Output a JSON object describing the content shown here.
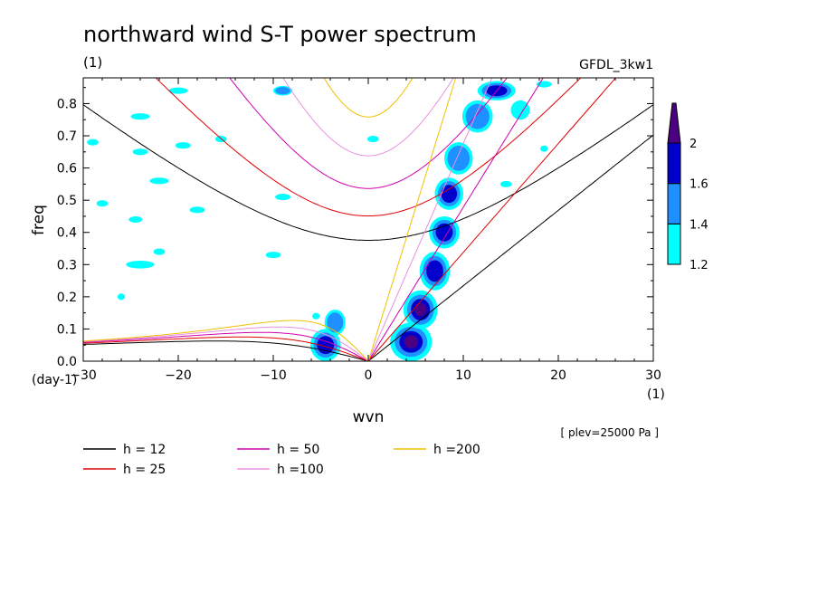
{
  "chart_data": {
    "type": "heatmap",
    "title": "northward wind S-T power spectrum",
    "title_units": "(1)",
    "model_label": "GFDL_3kw1",
    "xlabel": "wvn",
    "ylabel": "freq",
    "x_units": "(1)",
    "y_units": "(day-1)",
    "level_note": "[ plev=25000 Pa ]",
    "xlim": [
      -30,
      30
    ],
    "ylim": [
      0,
      0.88
    ],
    "x_ticks": [
      -30,
      -20,
      -10,
      0,
      10,
      20,
      30
    ],
    "y_ticks": [
      0.0,
      0.1,
      0.2,
      0.3,
      0.4,
      0.5,
      0.6,
      0.7,
      0.8
    ],
    "y_tick_labels": [
      "0.0",
      "0.1",
      "0.2",
      "0.3",
      "0.4",
      "0.5",
      "0.6",
      "0.7",
      "0.8"
    ],
    "colorbar": {
      "levels": [
        1.2,
        1.4,
        1.6,
        2
      ],
      "labels": [
        "1.2",
        "1.4",
        "1.6",
        "2"
      ],
      "colors": [
        "#00ffff",
        "#1e90ff",
        "#0000cd",
        "#4b0082"
      ]
    },
    "dispersion_curves": [
      {
        "label": "h = 12",
        "h": 12,
        "color": "#000000"
      },
      {
        "label": "h = 25",
        "h": 25,
        "color": "#e00000"
      },
      {
        "label": "h = 50",
        "h": 50,
        "color": "#d000b0"
      },
      {
        "label": "h =100",
        "h": 100,
        "color": "#e890e0"
      },
      {
        "label": "h =200",
        "h": 200,
        "color": "#f0c000"
      }
    ],
    "power_blobs": [
      {
        "x": -4.5,
        "y": 0.05,
        "rx": 1.6,
        "ry": 0.05,
        "level": 1.6
      },
      {
        "x": -3.5,
        "y": 0.12,
        "rx": 1.1,
        "ry": 0.04,
        "level": 1.4
      },
      {
        "x": 4.5,
        "y": 0.06,
        "rx": 2.2,
        "ry": 0.06,
        "level": 2
      },
      {
        "x": 5.5,
        "y": 0.16,
        "rx": 1.8,
        "ry": 0.06,
        "level": 2
      },
      {
        "x": 7.0,
        "y": 0.28,
        "rx": 1.6,
        "ry": 0.06,
        "level": 1.6
      },
      {
        "x": 8.0,
        "y": 0.4,
        "rx": 1.6,
        "ry": 0.05,
        "level": 1.6
      },
      {
        "x": 8.5,
        "y": 0.52,
        "rx": 1.5,
        "ry": 0.05,
        "level": 1.6
      },
      {
        "x": 9.5,
        "y": 0.63,
        "rx": 1.5,
        "ry": 0.05,
        "level": 1.4
      },
      {
        "x": 11.5,
        "y": 0.76,
        "rx": 1.6,
        "ry": 0.05,
        "level": 1.4
      },
      {
        "x": 13.5,
        "y": 0.84,
        "rx": 2.0,
        "ry": 0.03,
        "level": 1.6
      },
      {
        "x": 16.0,
        "y": 0.78,
        "rx": 1.0,
        "ry": 0.03,
        "level": 1.2
      },
      {
        "x": -9.0,
        "y": 0.84,
        "rx": 1.0,
        "ry": 0.015,
        "level": 1.4
      },
      {
        "x": -24.0,
        "y": 0.76,
        "rx": 1.0,
        "ry": 0.01,
        "level": 1.2
      },
      {
        "x": -20.0,
        "y": 0.84,
        "rx": 1.0,
        "ry": 0.01,
        "level": 1.2
      },
      {
        "x": -29.0,
        "y": 0.68,
        "rx": 0.6,
        "ry": 0.01,
        "level": 1.2
      },
      {
        "x": -24.0,
        "y": 0.65,
        "rx": 0.8,
        "ry": 0.01,
        "level": 1.2
      },
      {
        "x": -19.5,
        "y": 0.67,
        "rx": 0.8,
        "ry": 0.01,
        "level": 1.2
      },
      {
        "x": -15.5,
        "y": 0.69,
        "rx": 0.6,
        "ry": 0.01,
        "level": 1.2
      },
      {
        "x": -22.0,
        "y": 0.56,
        "rx": 1.0,
        "ry": 0.01,
        "level": 1.2
      },
      {
        "x": -24.5,
        "y": 0.44,
        "rx": 0.7,
        "ry": 0.01,
        "level": 1.2
      },
      {
        "x": -18.0,
        "y": 0.47,
        "rx": 0.8,
        "ry": 0.01,
        "level": 1.2
      },
      {
        "x": -28.0,
        "y": 0.49,
        "rx": 0.6,
        "ry": 0.01,
        "level": 1.2
      },
      {
        "x": -22.0,
        "y": 0.34,
        "rx": 0.6,
        "ry": 0.01,
        "level": 1.2
      },
      {
        "x": -24.0,
        "y": 0.3,
        "rx": 1.5,
        "ry": 0.012,
        "level": 1.2
      },
      {
        "x": -26.0,
        "y": 0.2,
        "rx": 0.4,
        "ry": 0.01,
        "level": 1.2
      },
      {
        "x": -9.0,
        "y": 0.51,
        "rx": 0.8,
        "ry": 0.01,
        "level": 1.2
      },
      {
        "x": -10.0,
        "y": 0.33,
        "rx": 0.8,
        "ry": 0.01,
        "level": 1.2
      },
      {
        "x": 0.5,
        "y": 0.69,
        "rx": 0.6,
        "ry": 0.01,
        "level": 1.2
      },
      {
        "x": -5.5,
        "y": 0.14,
        "rx": 0.4,
        "ry": 0.01,
        "level": 1.2
      },
      {
        "x": 18.5,
        "y": 0.86,
        "rx": 0.8,
        "ry": 0.01,
        "level": 1.2
      },
      {
        "x": 14.5,
        "y": 0.55,
        "rx": 0.6,
        "ry": 0.01,
        "level": 1.2
      },
      {
        "x": 18.5,
        "y": 0.66,
        "rx": 0.4,
        "ry": 0.01,
        "level": 1.2
      }
    ]
  }
}
